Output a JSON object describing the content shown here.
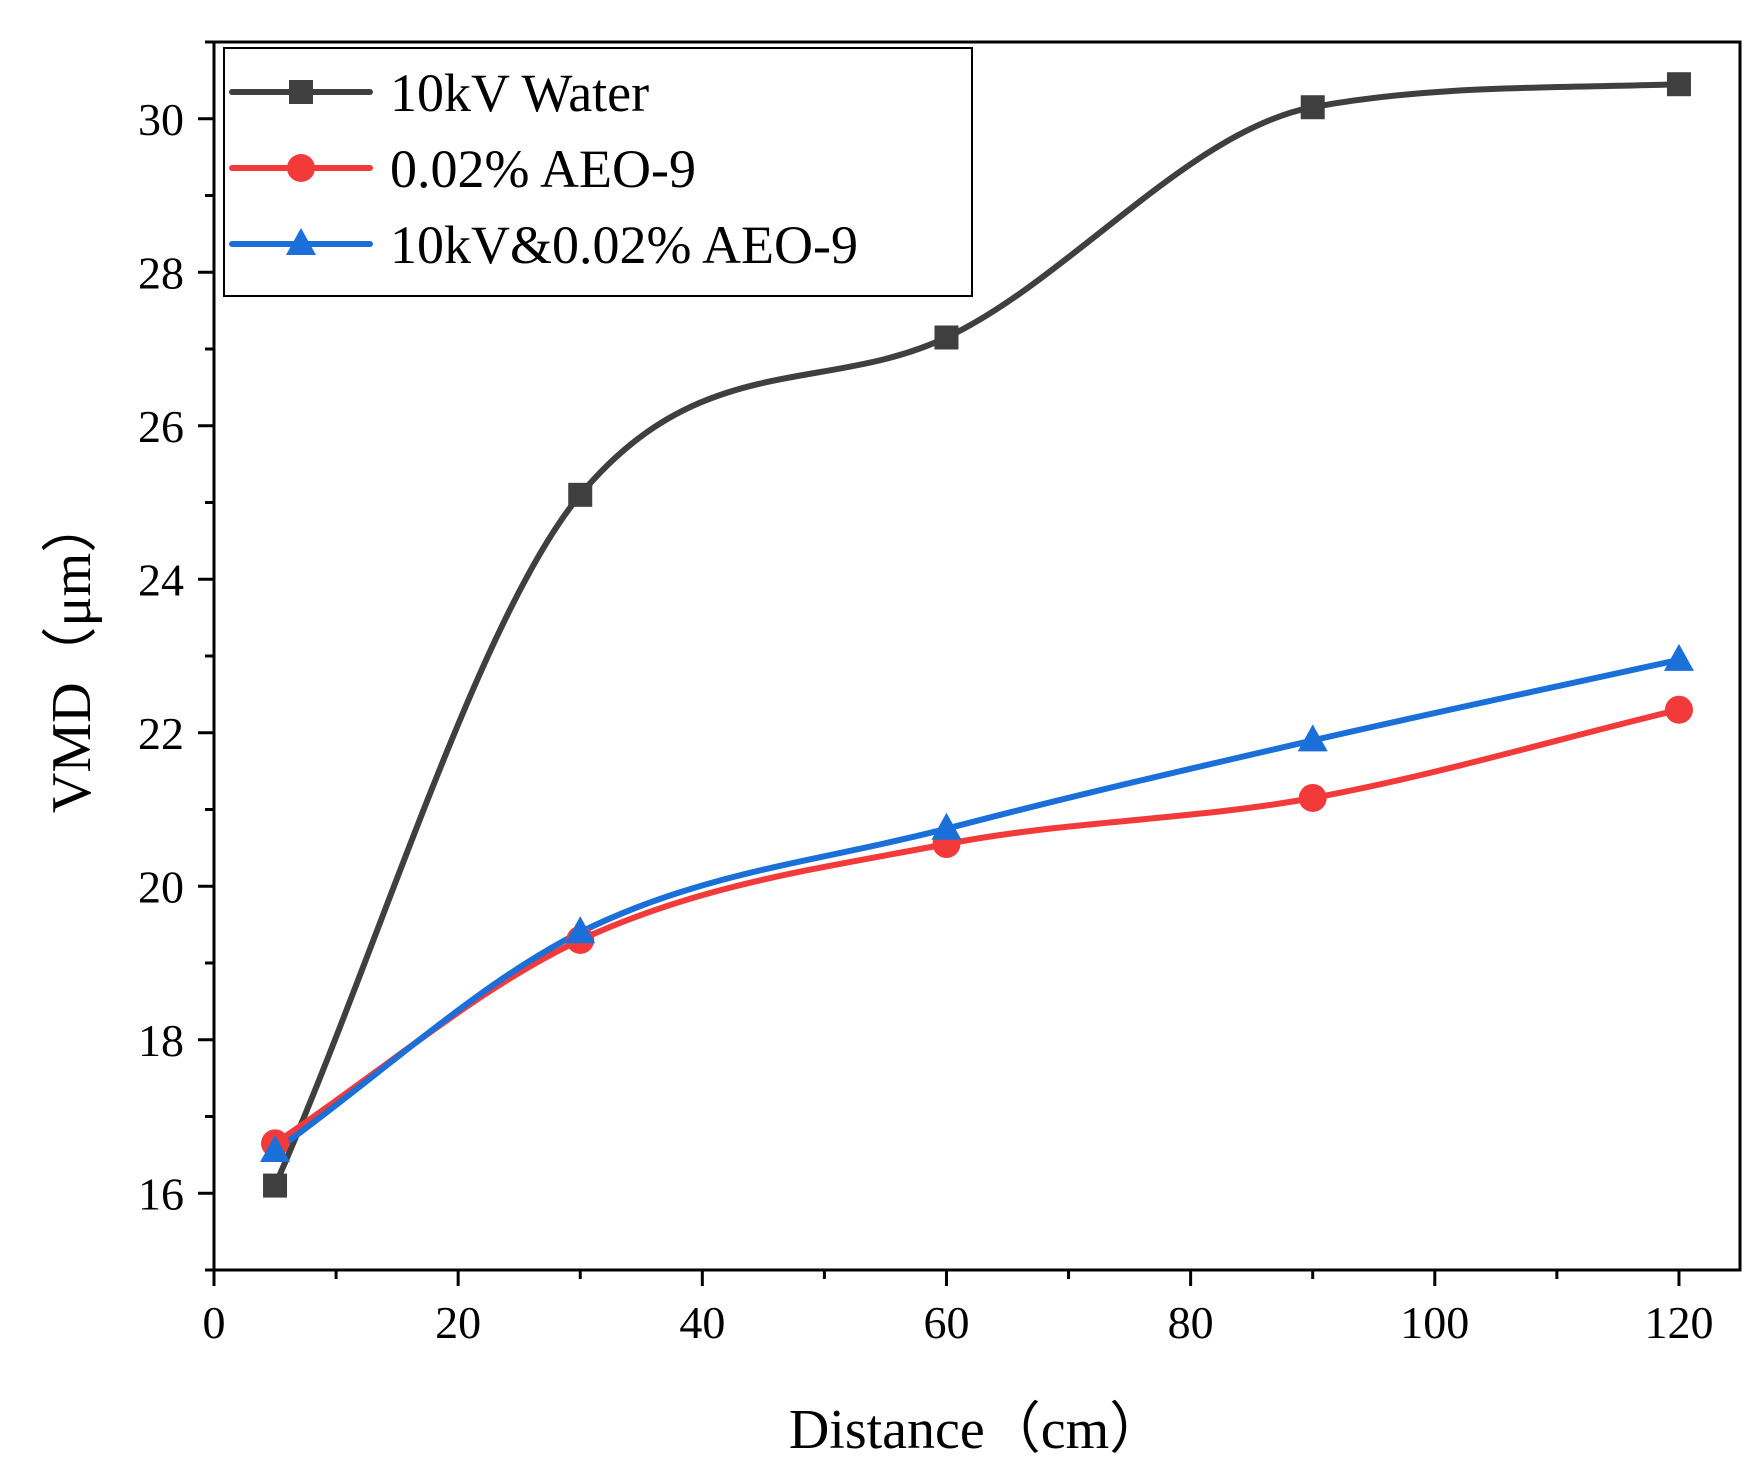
{
  "chart_data": {
    "type": "line",
    "title": "",
    "xlabel": "Distance（cm）",
    "ylabel": "VMD（μm）",
    "xlim": [
      0,
      125
    ],
    "ylim": [
      15,
      31
    ],
    "xticks": [
      0,
      20,
      40,
      60,
      80,
      100,
      120
    ],
    "xtick_labels": [
      "0",
      "20",
      "40",
      "60",
      "80",
      "100",
      "120"
    ],
    "yticks": [
      16,
      18,
      20,
      22,
      24,
      26,
      28,
      30
    ],
    "ytick_labels": [
      "16",
      "18",
      "20",
      "22",
      "24",
      "26",
      "28",
      "30"
    ],
    "grid": false,
    "legend_position": "top-left",
    "x": [
      5,
      30,
      60,
      90,
      120
    ],
    "series": [
      {
        "name": "10kV Water",
        "values": [
          16.1,
          25.1,
          27.15,
          30.15,
          30.45
        ],
        "color": "#3f3f3f",
        "marker": "square",
        "fit": "smooth-curve"
      },
      {
        "name": "0.02% AEO-9",
        "values": [
          16.65,
          19.3,
          20.55,
          21.15,
          22.3
        ],
        "color": "#f23a3a",
        "marker": "circle",
        "fit": "smooth-curve"
      },
      {
        "name": "10kV&0.02% AEO-9",
        "values": [
          16.55,
          19.4,
          20.75,
          21.9,
          22.95
        ],
        "color": "#1a6fd8",
        "marker": "triangle",
        "fit": "smooth-curve"
      }
    ]
  }
}
